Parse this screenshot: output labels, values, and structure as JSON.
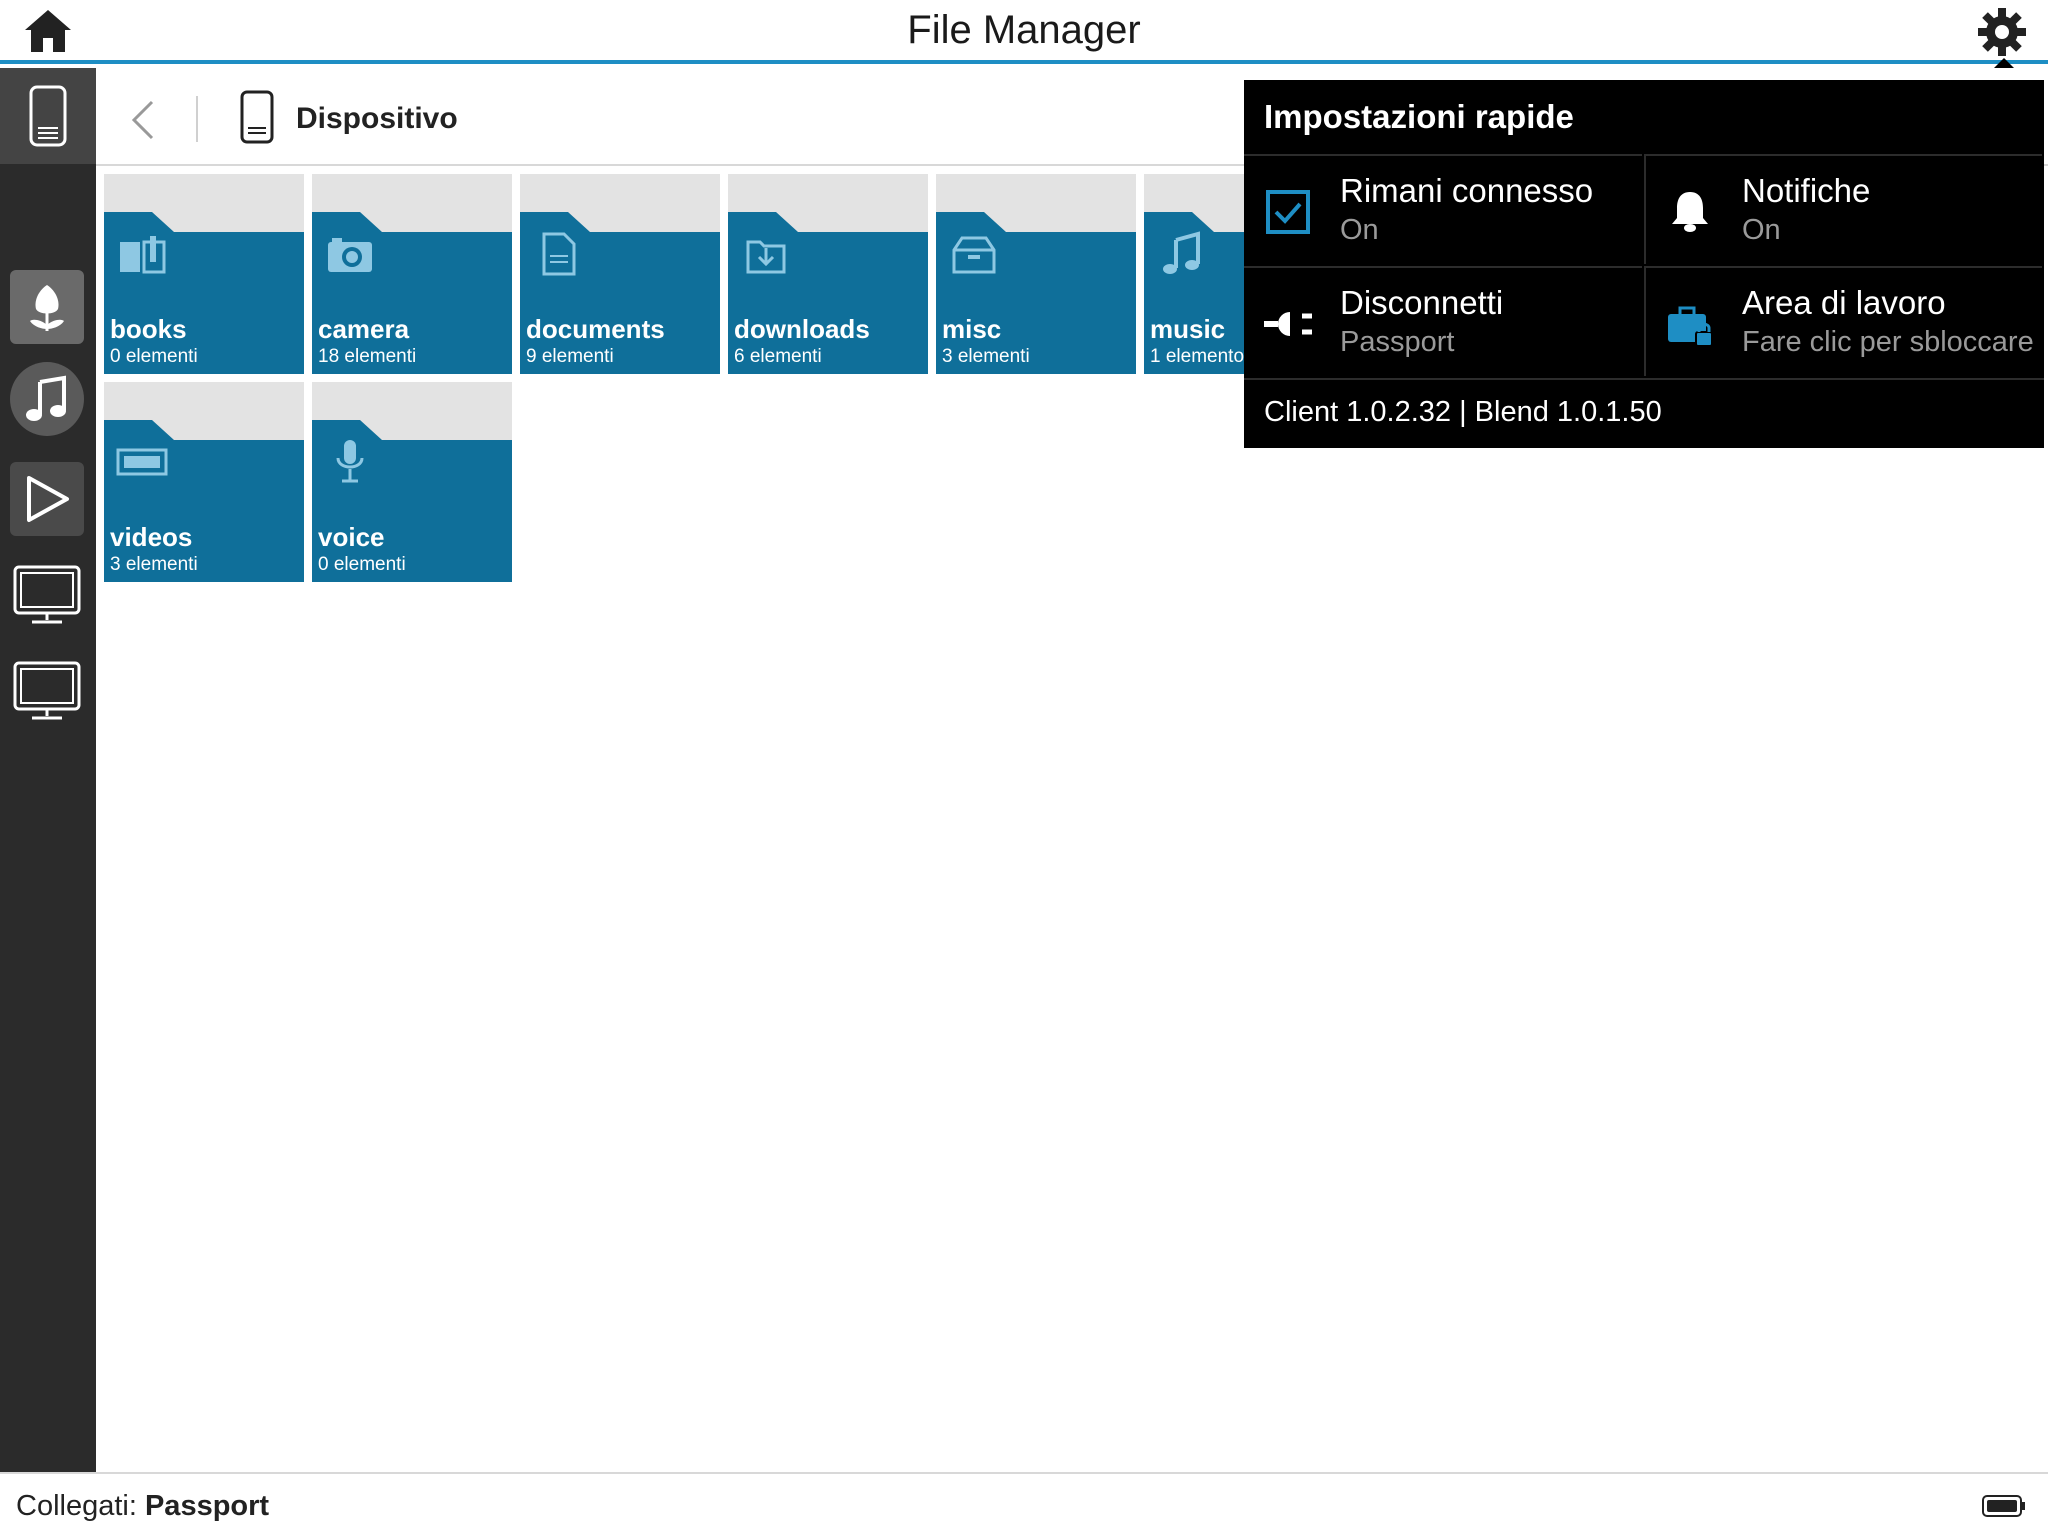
{
  "app": {
    "title": "File Manager"
  },
  "topbar": {
    "home_icon": "home-icon",
    "settings_icon": "gear-icon"
  },
  "sidebar": {
    "items": [
      {
        "name": "device",
        "icon": "phone-icon"
      },
      {
        "name": "photos",
        "icon": "tulip-icon"
      },
      {
        "name": "music",
        "icon": "music-note-icon"
      },
      {
        "name": "videos",
        "icon": "play-icon"
      },
      {
        "name": "display-1",
        "icon": "monitor-icon"
      },
      {
        "name": "display-2",
        "icon": "monitor-icon"
      }
    ]
  },
  "breadcrumb": {
    "label": "Dispositivo"
  },
  "folders": [
    {
      "name": "books",
      "count": "0 elementi",
      "icon": "book-icon"
    },
    {
      "name": "camera",
      "count": "18 elementi",
      "icon": "camera-icon"
    },
    {
      "name": "documents",
      "count": "9 elementi",
      "icon": "document-icon"
    },
    {
      "name": "downloads",
      "count": "6 elementi",
      "icon": "download-icon"
    },
    {
      "name": "misc",
      "count": "3 elementi",
      "icon": "box-icon"
    },
    {
      "name": "music",
      "count": "1 elemento",
      "icon": "music-note-icon"
    },
    {
      "name": "videos",
      "count": "3 elementi",
      "icon": "film-icon"
    },
    {
      "name": "voice",
      "count": "0 elementi",
      "icon": "microphone-icon"
    }
  ],
  "quick_settings": {
    "title": "Impostazioni rapide",
    "stay_connected": {
      "label": "Rimani connesso",
      "value": "On"
    },
    "notifications": {
      "label": "Notifiche",
      "value": "On"
    },
    "disconnect": {
      "label": "Disconnetti",
      "value": "Passport"
    },
    "workspace": {
      "label": "Area di lavoro",
      "value": "Fare clic per sbloccare"
    },
    "version": "Client 1.0.2.32 | Blend 1.0.1.50"
  },
  "status": {
    "prefix": "Collegati:",
    "device": "Passport"
  },
  "colors": {
    "accent": "#1e8ec4",
    "folder": "#0f6f9a",
    "sidebar": "#2b2b2b",
    "popup": "#000000"
  }
}
